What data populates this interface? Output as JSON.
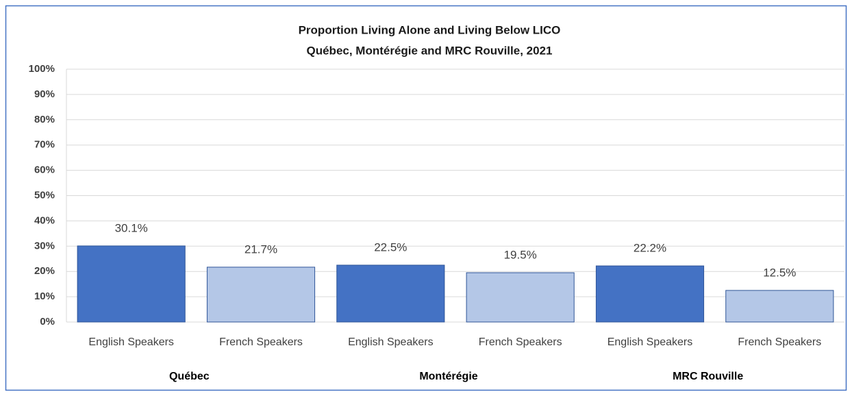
{
  "chart_data": {
    "type": "bar",
    "title": "Proportion Living Alone and Living Below LICO",
    "subtitle": "Québec, Montérégie and MRC Rouville, 2021",
    "categories": [
      "English Speakers",
      "French Speakers",
      "English Speakers",
      "French Speakers",
      "English Speakers",
      "French Speakers"
    ],
    "groups": [
      "Québec",
      "Montérégie",
      "MRC Rouville"
    ],
    "values": [
      30.1,
      21.7,
      22.5,
      19.5,
      22.2,
      12.5
    ],
    "value_labels": [
      "30.1%",
      "21.7%",
      "22.5%",
      "19.5%",
      "22.2%",
      "12.5%"
    ],
    "colors": [
      "#4472c4",
      "#b4c7e7",
      "#4472c4",
      "#b4c7e7",
      "#4472c4",
      "#b4c7e7"
    ],
    "ylim": [
      0,
      100
    ],
    "yticks": [
      {
        "value": 0,
        "label": "0%"
      },
      {
        "value": 10,
        "label": "10%"
      },
      {
        "value": 20,
        "label": "20%"
      },
      {
        "value": 30,
        "label": "30%"
      },
      {
        "value": 40,
        "label": "40%"
      },
      {
        "value": 50,
        "label": "50%"
      },
      {
        "value": 60,
        "label": "60%"
      },
      {
        "value": 70,
        "label": "70%"
      },
      {
        "value": 80,
        "label": "80%"
      },
      {
        "value": 90,
        "label": "90%"
      },
      {
        "value": 100,
        "label": "100%"
      }
    ],
    "grid": true
  }
}
